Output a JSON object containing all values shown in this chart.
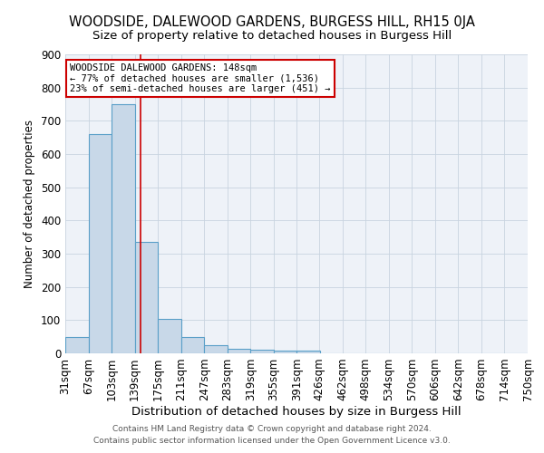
{
  "title": "WOODSIDE, DALEWOOD GARDENS, BURGESS HILL, RH15 0JA",
  "subtitle": "Size of property relative to detached houses in Burgess Hill",
  "xlabel": "Distribution of detached houses by size in Burgess Hill",
  "ylabel": "Number of detached properties",
  "footnote1": "Contains HM Land Registry data © Crown copyright and database right 2024.",
  "footnote2": "Contains public sector information licensed under the Open Government Licence v3.0.",
  "bin_edges": [
    31,
    67,
    103,
    139,
    175,
    211,
    247,
    283,
    319,
    355,
    391,
    426,
    462,
    498,
    534,
    570,
    606,
    642,
    678,
    714,
    750
  ],
  "bar_heights": [
    50,
    660,
    750,
    335,
    105,
    50,
    25,
    15,
    10,
    8,
    8,
    0,
    0,
    0,
    0,
    0,
    0,
    0,
    0,
    0
  ],
  "bar_color": "#c8d8e8",
  "bar_edge_color": "#5a9fc8",
  "bar_edge_width": 0.8,
  "grid_color": "#c8d4e0",
  "background_color": "#eef2f8",
  "property_line_x": 148,
  "property_line_color": "#cc0000",
  "annotation_line1": "WOODSIDE DALEWOOD GARDENS: 148sqm",
  "annotation_line2": "← 77% of detached houses are smaller (1,536)",
  "annotation_line3": "23% of semi-detached houses are larger (451) →",
  "annotation_box_color": "#ffffff",
  "annotation_box_edge_color": "#cc0000",
  "ylim": [
    0,
    900
  ],
  "yticks": [
    0,
    100,
    200,
    300,
    400,
    500,
    600,
    700,
    800,
    900
  ],
  "tick_label_fontsize": 8.5,
  "title_fontsize": 10.5,
  "subtitle_fontsize": 9.5,
  "xlabel_fontsize": 9.5,
  "ylabel_fontsize": 8.5,
  "annotation_fontsize": 7.5,
  "footnote_fontsize": 6.5
}
